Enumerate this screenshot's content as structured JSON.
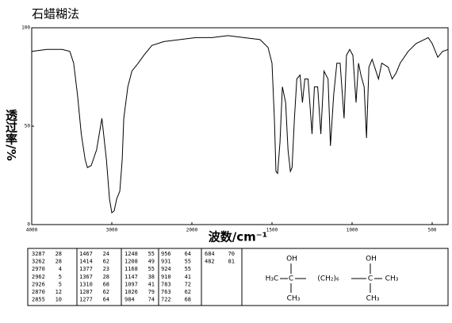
{
  "chart_data": {
    "type": "line",
    "title": "石蜡糊法",
    "xlabel": "波数/cm⁻¹",
    "ylabel": "透过率/%",
    "color": "#000000",
    "xlim": [
      4000,
      400
    ],
    "xticks": [
      4000,
      3000,
      2000,
      1500,
      1000,
      500
    ],
    "ylim": [
      0,
      100
    ],
    "yticks": [
      0,
      50,
      100
    ],
    "x": [
      4000,
      3810,
      3619,
      3524,
      3476,
      3429,
      3381,
      3333,
      3305,
      3257,
      3190,
      3124,
      3067,
      3029,
      3000,
      2970,
      2940,
      2900,
      2870,
      2850,
      2800,
      2750,
      2670,
      2600,
      2500,
      2350,
      2150,
      1975,
      1875,
      1775,
      1675,
      1575,
      1525,
      1500,
      1485,
      1475,
      1465,
      1450,
      1435,
      1415,
      1400,
      1385,
      1375,
      1360,
      1345,
      1325,
      1310,
      1295,
      1275,
      1250,
      1235,
      1215,
      1195,
      1175,
      1150,
      1135,
      1115,
      1095,
      1075,
      1050,
      1035,
      1015,
      995,
      975,
      960,
      945,
      925,
      910,
      895,
      875,
      835,
      815,
      775,
      750,
      725,
      700,
      650,
      600,
      550,
      525,
      500,
      465,
      435,
      400
    ],
    "values": [
      88,
      89,
      89,
      88,
      82,
      66,
      46,
      33,
      29,
      30,
      38,
      54,
      33,
      13,
      6,
      7,
      13,
      17,
      33,
      54,
      70,
      78,
      82,
      86,
      91,
      93,
      94,
      95,
      95,
      96,
      95,
      94,
      90,
      82,
      54,
      27,
      26,
      42,
      70,
      62,
      38,
      27,
      29,
      54,
      74,
      76,
      62,
      74,
      74,
      46,
      70,
      70,
      46,
      78,
      74,
      40,
      66,
      82,
      82,
      54,
      86,
      89,
      86,
      62,
      82,
      76,
      70,
      44,
      80,
      84,
      74,
      82,
      80,
      74,
      77,
      82,
      88,
      92,
      94,
      95,
      92,
      85,
      88,
      89
    ]
  },
  "peak_table": [
    [
      [
        3287,
        28
      ],
      [
        3262,
        28
      ],
      [
        2970,
        4
      ],
      [
        2962,
        5
      ],
      [
        2926,
        5
      ],
      [
        2870,
        12
      ],
      [
        2855,
        10
      ]
    ],
    [
      [
        1467,
        24
      ],
      [
        1414,
        62
      ],
      [
        1377,
        23
      ],
      [
        1367,
        28
      ],
      [
        1310,
        68
      ],
      [
        1287,
        62
      ],
      [
        1277,
        64
      ]
    ],
    [
      [
        1248,
        55
      ],
      [
        1208,
        49
      ],
      [
        1168,
        55
      ],
      [
        1147,
        38
      ],
      [
        1097,
        41
      ],
      [
        1026,
        79
      ],
      [
        984,
        74
      ]
    ],
    [
      [
        956,
        64
      ],
      [
        931,
        55
      ],
      [
        924,
        55
      ],
      [
        910,
        41
      ],
      [
        783,
        72
      ],
      [
        763,
        62
      ],
      [
        722,
        68
      ]
    ],
    [
      [
        684,
        70
      ],
      [
        482,
        81
      ]
    ]
  ],
  "structure": {
    "groups": [
      "H₃C",
      "C",
      "(CH₂)₆",
      "C",
      "CH₃"
    ],
    "top": [
      "OH",
      "OH"
    ],
    "bottom": [
      "CH₃",
      "CH₃"
    ]
  }
}
